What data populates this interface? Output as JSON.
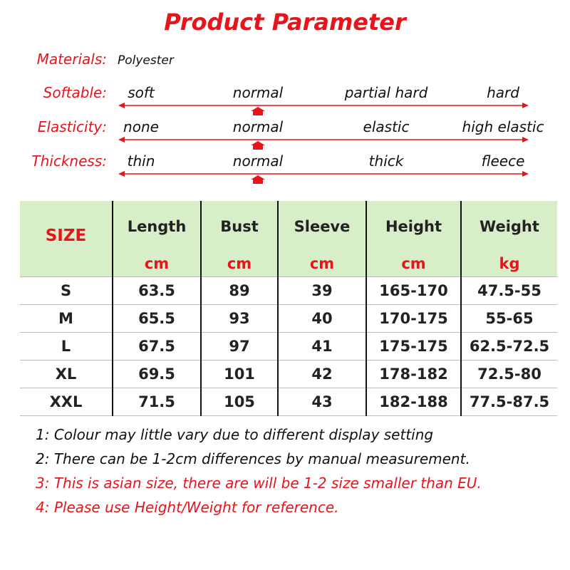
{
  "title": "Product Parameter",
  "materials": {
    "label": "Materials:",
    "value": "Polyester"
  },
  "scales": [
    {
      "label": "Softable:",
      "options": [
        "soft",
        "normal",
        "partial hard",
        "hard"
      ]
    },
    {
      "label": "Elasticity:",
      "options": [
        "none",
        "normal",
        "elastic",
        "high elastic"
      ]
    },
    {
      "label": "Thickness:",
      "options": [
        "thin",
        "normal",
        "thick",
        "fleece"
      ]
    }
  ],
  "table": {
    "header": [
      "SIZE",
      "Length",
      "Bust",
      "Sleeve",
      "Height",
      "Weight"
    ],
    "units": [
      "cm",
      "cm",
      "cm",
      "cm",
      "kg"
    ],
    "rows": [
      [
        "S",
        "63.5",
        "89",
        "39",
        "165-170",
        "47.5-55"
      ],
      [
        "M",
        "65.5",
        "93",
        "40",
        "170-175",
        "55-65"
      ],
      [
        "L",
        "67.5",
        "97",
        "41",
        "175-175",
        "62.5-72.5"
      ],
      [
        "XL",
        "69.5",
        "101",
        "42",
        "178-182",
        "72.5-80"
      ],
      [
        "XXL",
        "71.5",
        "105",
        "43",
        "182-188",
        "77.5-87.5"
      ]
    ]
  },
  "notes": [
    "1: Colour may little vary due to different display setting",
    "2: There can be 1-2cm differences by manual measurement.",
    "3: This is asian size, there are will be 1-2 size smaller than EU.",
    "4: Please use Height/Weight for reference."
  ]
}
